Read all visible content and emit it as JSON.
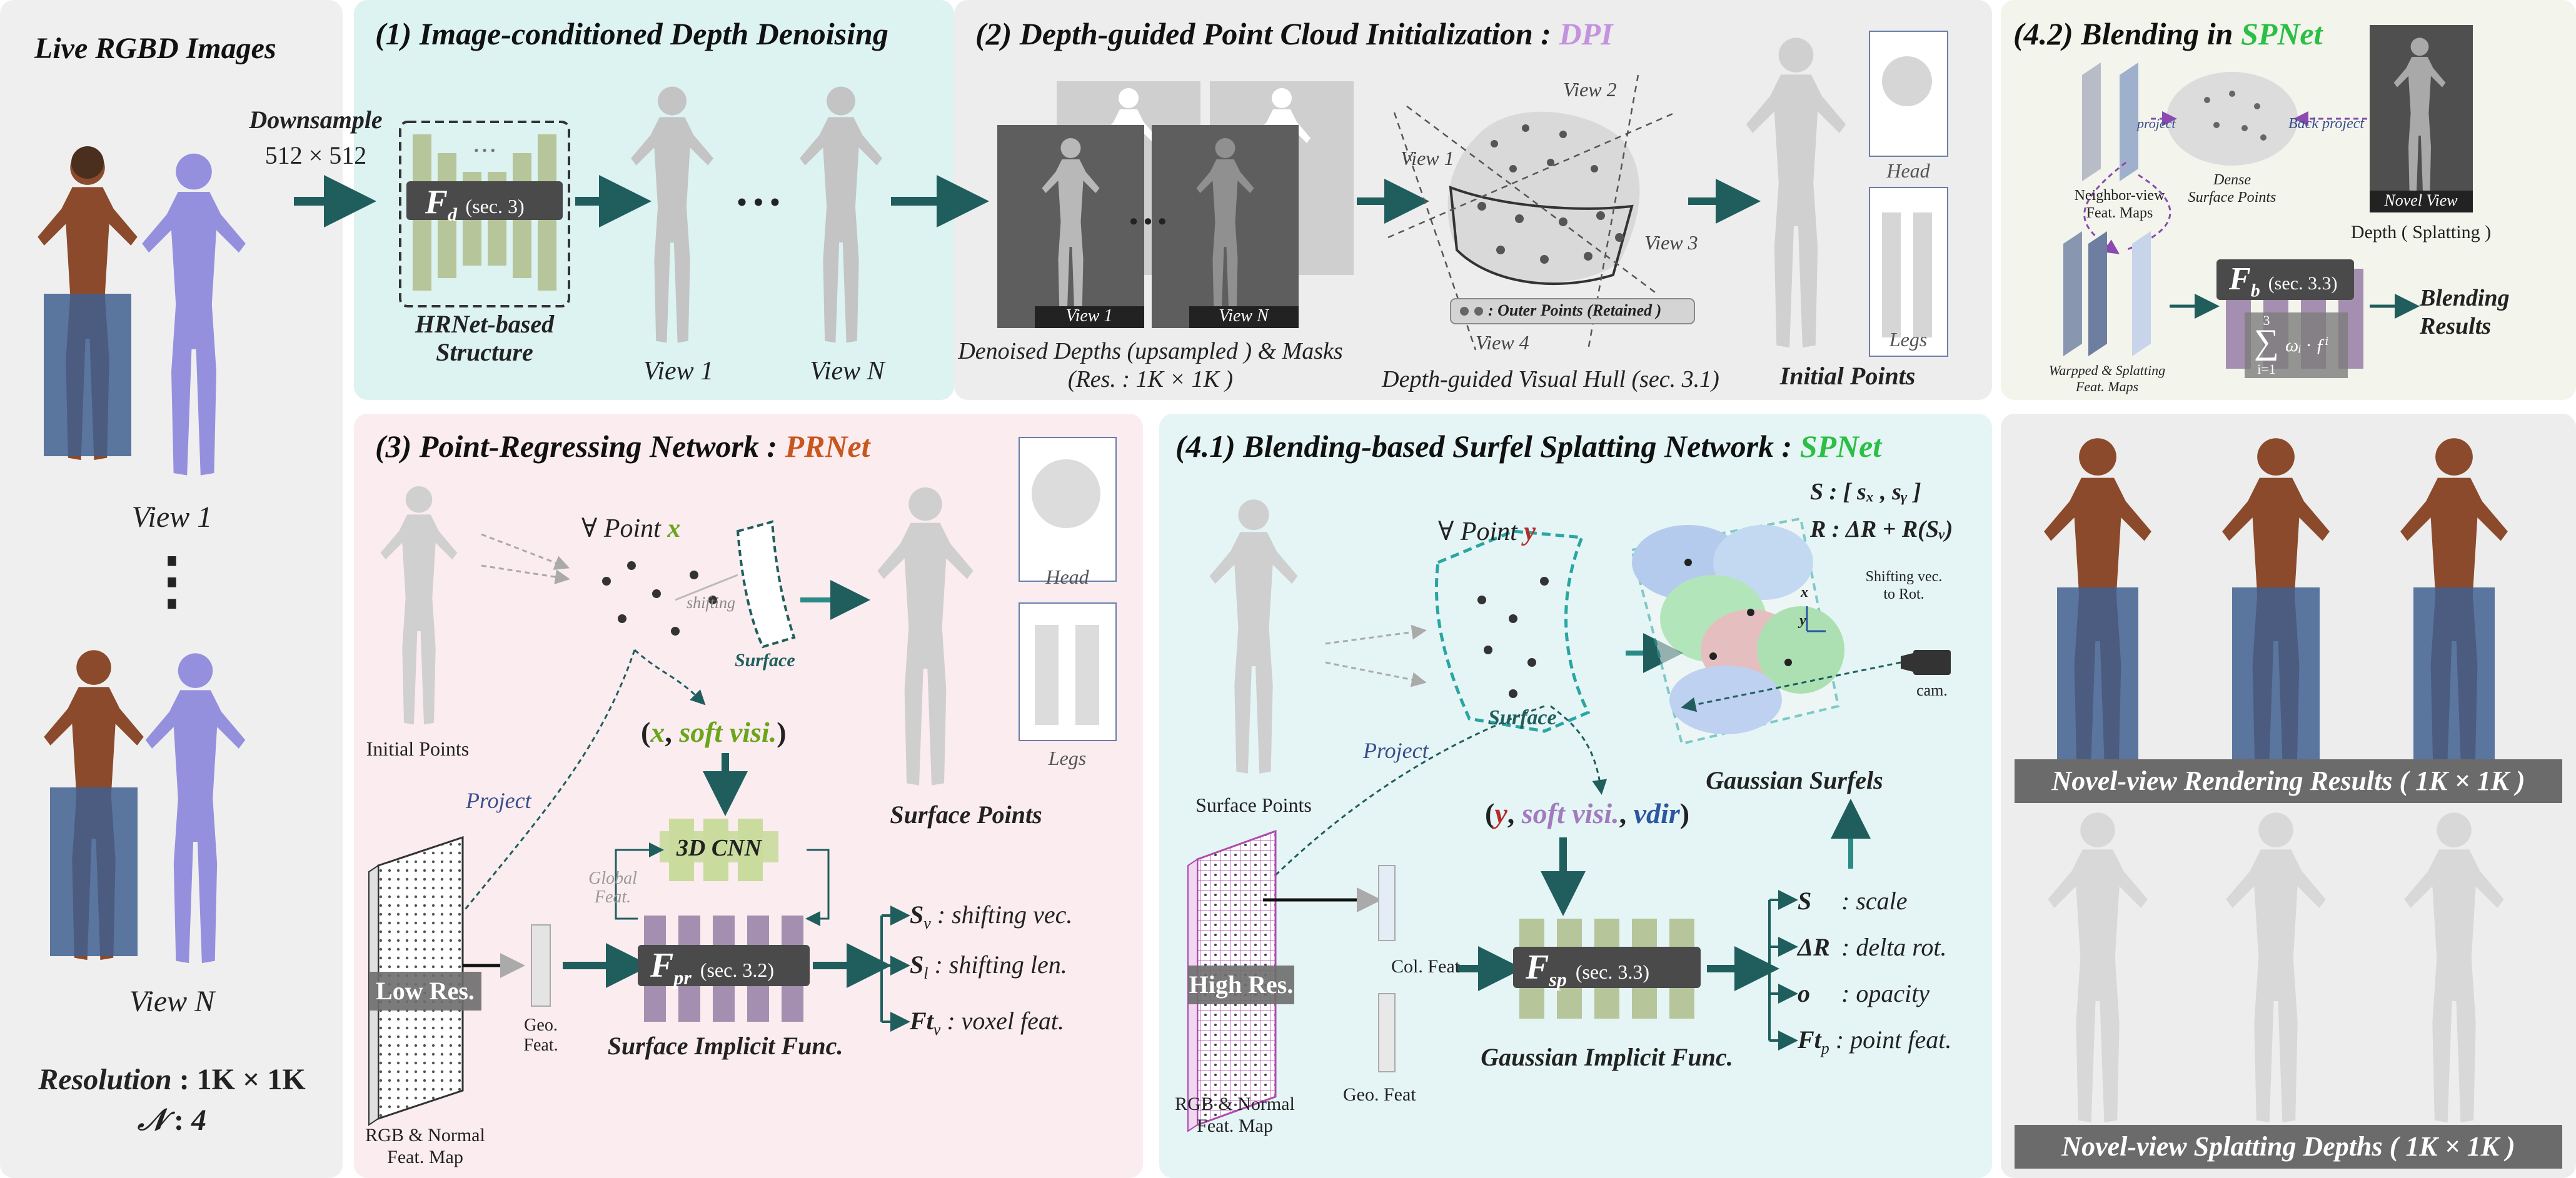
{
  "left": {
    "title": "Live RGBD Images",
    "view1": "View 1",
    "viewN": "View N",
    "dots": "⋮",
    "res_label": "Resolution",
    "res_value": "1K × 1K",
    "n_label": "𝒩",
    "n_value": "4"
  },
  "downsample": {
    "label": "Downsample",
    "size": "512 × 512"
  },
  "p1": {
    "title": "(1) Image-conditioned Depth Denoising",
    "func": "F",
    "func_sub": "d",
    "func_ref": "(sec. 3)",
    "struct1": "HRNet-based",
    "struct2": "Structure",
    "view1": "View 1",
    "viewN": "View N",
    "ellipsis": "• • •",
    "bar_dots": "• • •"
  },
  "p2": {
    "title_pre": "(2)  Depth-guided Point Cloud Initialization : ",
    "title_acc": "DPI",
    "view1": "View 1",
    "viewN": "View N",
    "ellipsis": "• • •",
    "caption1": "Denoised Depths (upsampled ) & Masks",
    "caption2": "(Res. : 1K × 1K )",
    "hull_v1": "View 1",
    "hull_v2": "View 2",
    "hull_v3": "View 3",
    "hull_v4": "View 4",
    "outer": ": Outer Points (Retained )",
    "hull_caption": "Depth-guided Visual Hull (sec. 3.1)",
    "head": "Head",
    "legs": "Legs",
    "init_points": "Initial Points"
  },
  "p42": {
    "title_pre": "(4.2)  Blending in ",
    "title_acc": "SPNet",
    "project": "project",
    "back_project": "Back project",
    "neighbor1": "Neighbor-view",
    "neighbor2": "Feat. Maps",
    "dense1": "Dense",
    "dense2": "Surface Points",
    "novel_view": "Novel View",
    "depth": "Depth ( Splatting )",
    "func": "F",
    "func_sub": "b",
    "func_ref": "(sec. 3.3)",
    "warped1": "Warpped  &  Splatting",
    "warped2": "Feat. Maps",
    "sum_top": "3",
    "sum_bot": "i=1",
    "sum_body": "ωᵢ · ƒⁱ",
    "blending1": "Blending",
    "blending2": "Results"
  },
  "p3": {
    "title_pre": "(3) Point-Regressing Network : ",
    "title_acc": "PRNet",
    "init_points": "Initial Points",
    "forall": "∀ Point",
    "var_x": "x",
    "shifting": "shifting",
    "surface": "Surface",
    "head": "Head",
    "legs": "Legs",
    "surface_points": "Surface Points",
    "tuple_open": "(",
    "tuple_x": "x",
    "tuple_mid": ", ",
    "tuple_soft": "soft visi.",
    "tuple_close": ")",
    "project": "Project",
    "cnn": "3D CNN",
    "global1": "Global",
    "global2": "Feat.",
    "low_res": "Low Res.",
    "geo1": "Geo.",
    "geo2": "Feat.",
    "func": "F",
    "func_sub": "pr",
    "func_ref": "(sec. 3.2)",
    "sif": "Surface Implicit Func.",
    "rgbn1": "RGB & Normal",
    "rgbn2": "Feat. Map",
    "outputs": [
      {
        "sym": "S",
        "sub": "v",
        "desc": ": shifting vec."
      },
      {
        "sym": "S",
        "sub": "l",
        "desc": ": shifting len."
      },
      {
        "sym": "Ft",
        "sub": "v",
        "desc": ": voxel feat."
      }
    ]
  },
  "p41": {
    "title_pre": "(4.1) Blending-based Surfel Splatting Network : ",
    "title_acc": "SPNet",
    "surface_points": "Surface Points",
    "forall": "∀ Point",
    "var_y": "y",
    "surface": "Surface",
    "project": "Project",
    "s_formula": "S : [ sₓ , sᵧ ]",
    "r_formula": "R : ΔR + R(Sᵥ)",
    "shift_note1": "Shifting vec.",
    "shift_note2": "to Rot.",
    "axis_x": "x",
    "axis_y": "y",
    "cam": "cam.",
    "gauss_surfels": "Gaussian Surfels",
    "tuple_open": "(",
    "tuple_y": "y",
    "tuple_sep1": ", ",
    "tuple_soft": "soft visi.",
    "tuple_sep2": ", ",
    "tuple_vdir": "vdir",
    "tuple_close": ")",
    "high_res": "High Res.",
    "col_feat": "Col. Feat",
    "geo_feat": "Geo. Feat",
    "func": "F",
    "func_sub": "sp",
    "func_ref": "(sec. 3.3)",
    "gif": "Gaussian Implicit Func.",
    "rgbn1": "RGB & Normal",
    "rgbn2": "Feat. Map",
    "outputs": [
      {
        "sym": "S",
        "desc": ": scale"
      },
      {
        "sym": "ΔR",
        "desc": ": delta rot."
      },
      {
        "sym": "o",
        "desc": ": opacity"
      },
      {
        "sym": "Ft",
        "sub": "p",
        "desc": ": point feat."
      }
    ]
  },
  "right": {
    "render_label": "Novel-view Rendering Results ( 1K × 1K )",
    "depth_label": "Novel-view Splatting Depths ( 1K × 1K )"
  },
  "colors": {
    "panel1_bg": "#dcf3f1",
    "panel_gray": "#ededed",
    "panel3_bg": "#fbecef",
    "panel41_bg": "#e5f5f5",
    "panel42_bg": "#f3f4ec",
    "arrow": "#1f5e5d",
    "dpi": "#c493df",
    "prnet": "#c8561e",
    "spnet": "#2bbf45",
    "block_green": "#b6c59a",
    "block_purple": "#a48fb0",
    "red_var": "#b52a2a",
    "purple_var": "#a27bbf",
    "blue_var": "#2d56a0"
  }
}
